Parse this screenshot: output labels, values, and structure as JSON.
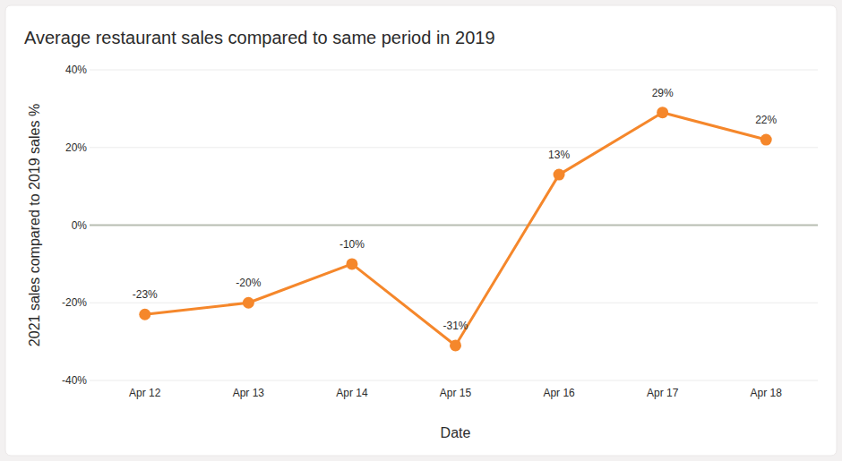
{
  "chart_data": {
    "type": "line",
    "title": "Average restaurant sales compared to same period in 2019",
    "x_label": "Date",
    "y_label": "2021 sales compared to 2019 sales %",
    "categories": [
      "Apr 12",
      "Apr 13",
      "Apr 14",
      "Apr 15",
      "Apr 16",
      "Apr 17",
      "Apr 18"
    ],
    "values": [
      -23,
      -20,
      -10,
      -31,
      13,
      29,
      22
    ],
    "value_labels": [
      "-23%",
      "-20%",
      "-10%",
      "-31%",
      "13%",
      "29%",
      "22%"
    ],
    "color": "#f5872b",
    "marker": "circle",
    "ylim": [
      -40,
      40
    ],
    "yticks": [
      {
        "value": -40,
        "label": "-40%"
      },
      {
        "value": -20,
        "label": "-20%"
      },
      {
        "value": 0,
        "label": "0%"
      },
      {
        "value": 20,
        "label": "20%"
      },
      {
        "value": 40,
        "label": "40%"
      }
    ],
    "grid": true,
    "data_labels": true
  }
}
